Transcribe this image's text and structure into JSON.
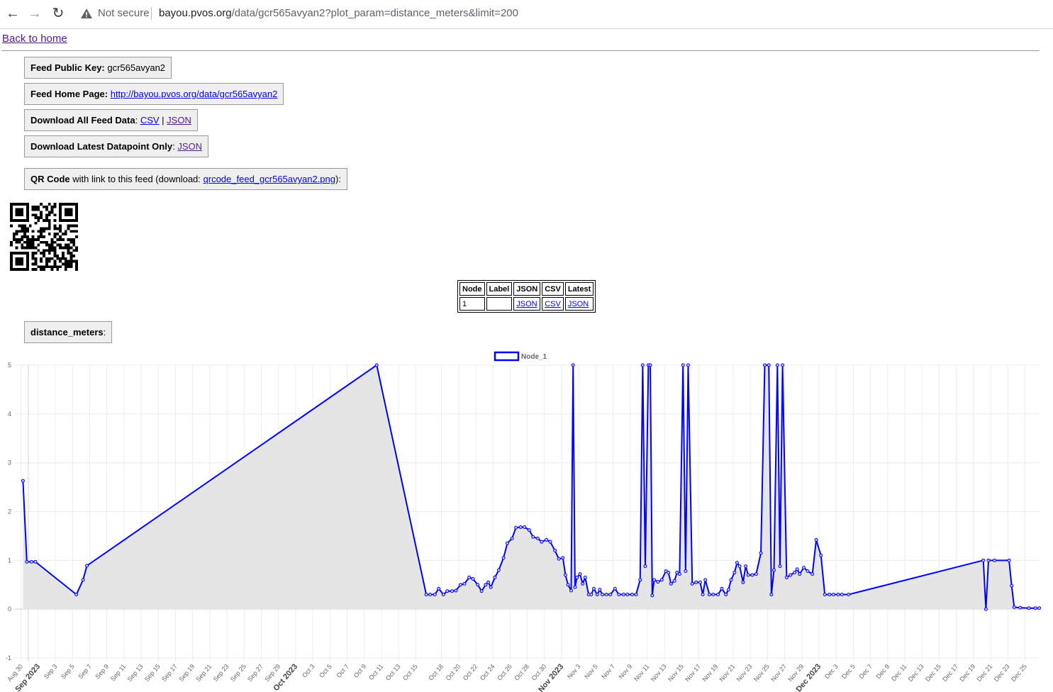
{
  "browser": {
    "security_label": "Not secure",
    "url_host": "bayou.pvos.org",
    "url_path": "/data/gcr565avyan2?plot_param=distance_meters&limit=200"
  },
  "page": {
    "back_link": "Back to home",
    "feed_key_label": "Feed Public Key:",
    "feed_key_value": " gcr565avyan2",
    "home_label": "Feed Home Page:",
    "home_url": "http://bayou.pvos.org/data/gcr565avyan2",
    "download_all_label": "Download All Feed Data",
    "download_all_csv": "CSV",
    "download_all_json": "JSON",
    "download_latest_label": "Download Latest Datapoint Only",
    "download_latest_json": "JSON",
    "qr_label": "QR Code",
    "qr_text_pre": " with link to this feed (download: ",
    "qr_file": "qrcode_feed_gcr565avyan2.png",
    "qr_text_post": "):",
    "param_label": "distance_meters"
  },
  "node_table": {
    "headers": [
      "Node",
      "Label",
      "JSON",
      "CSV",
      "Latest"
    ],
    "rows": [
      {
        "node": "1",
        "label": "",
        "json": "JSON",
        "csv": "CSV",
        "latest": "JSON"
      }
    ]
  },
  "chart_data": {
    "type": "line",
    "fill": true,
    "series": [
      {
        "name": "Node_1",
        "color": "#0000ff",
        "fill_color": "#e5e5e5",
        "points": [
          [
            "Aug 30",
            2.63
          ],
          [
            "Aug 30",
            0.97
          ],
          [
            "Aug 31",
            0.97
          ],
          [
            "Aug 31",
            0.97
          ],
          [
            "Sep 5",
            0.3
          ],
          [
            "Sep 6",
            0.6
          ],
          [
            "Sep 6",
            0.89
          ],
          [
            "Oct 10",
            5.0
          ],
          [
            "Oct 16",
            0.3
          ],
          [
            "Oct 16",
            0.3
          ],
          [
            "Oct 17",
            0.3
          ],
          [
            "Oct 17",
            0.42
          ],
          [
            "Oct 18",
            0.3
          ],
          [
            "Oct 18",
            0.37
          ],
          [
            "Oct 19",
            0.37
          ],
          [
            "Oct 19",
            0.38
          ],
          [
            "Oct 20",
            0.5
          ],
          [
            "Oct 20",
            0.52
          ],
          [
            "Oct 21",
            0.65
          ],
          [
            "Oct 21",
            0.62
          ],
          [
            "Oct 22",
            0.5
          ],
          [
            "Oct 22",
            0.37
          ],
          [
            "Oct 23",
            0.5
          ],
          [
            "Oct 23",
            0.55
          ],
          [
            "Oct 23",
            0.45
          ],
          [
            "Oct 24",
            0.65
          ],
          [
            "Oct 24",
            0.8
          ],
          [
            "Oct 25",
            1.05
          ],
          [
            "Oct 25",
            1.35
          ],
          [
            "Oct 26",
            1.45
          ],
          [
            "Oct 26",
            1.67
          ],
          [
            "Oct 27",
            1.68
          ],
          [
            "Oct 27",
            1.68
          ],
          [
            "Oct 28",
            1.62
          ],
          [
            "Oct 28",
            1.48
          ],
          [
            "Oct 29",
            1.45
          ],
          [
            "Oct 29",
            1.38
          ],
          [
            "Oct 30",
            1.42
          ],
          [
            "Oct 30",
            1.38
          ],
          [
            "Oct 31",
            1.2
          ],
          [
            "Oct 31",
            1.03
          ],
          [
            "Nov 1",
            1.05
          ],
          [
            "Nov 1",
            0.7
          ],
          [
            "Nov 1",
            0.5
          ],
          [
            "Nov 2",
            0.38
          ],
          [
            "Nov 2",
            5.0
          ],
          [
            "Nov 2",
            0.45
          ],
          [
            "Nov 2",
            0.65
          ],
          [
            "Nov 3",
            0.72
          ],
          [
            "Nov 3",
            0.52
          ],
          [
            "Nov 3",
            0.65
          ],
          [
            "Nov 4",
            0.3
          ],
          [
            "Nov 4",
            0.3
          ],
          [
            "Nov 4",
            0.42
          ],
          [
            "Nov 5",
            0.3
          ],
          [
            "Nov 5",
            0.4
          ],
          [
            "Nov 5",
            0.3
          ],
          [
            "Nov 6",
            0.3
          ],
          [
            "Nov 6",
            0.3
          ],
          [
            "Nov 7",
            0.42
          ],
          [
            "Nov 7",
            0.3
          ],
          [
            "Nov 8",
            0.3
          ],
          [
            "Nov 8",
            0.3
          ],
          [
            "Nov 9",
            0.3
          ],
          [
            "Nov 9",
            0.3
          ],
          [
            "Nov 10",
            0.6
          ],
          [
            "Nov 10",
            5.0
          ],
          [
            "Nov 10",
            0.88
          ],
          [
            "Nov 11",
            5.0
          ],
          [
            "Nov 11",
            5.0
          ],
          [
            "Nov 11",
            0.28
          ],
          [
            "Nov 11",
            0.6
          ],
          [
            "Nov 12",
            0.56
          ],
          [
            "Nov 12",
            0.6
          ],
          [
            "Nov 13",
            0.78
          ],
          [
            "Nov 13",
            0.75
          ],
          [
            "Nov 13",
            0.52
          ],
          [
            "Nov 14",
            0.58
          ],
          [
            "Nov 14",
            0.75
          ],
          [
            "Nov 14",
            0.72
          ],
          [
            "Nov 15",
            5.0
          ],
          [
            "Nov 15",
            0.78
          ],
          [
            "Nov 15",
            5.0
          ],
          [
            "Nov 16",
            0.52
          ],
          [
            "Nov 16",
            0.55
          ],
          [
            "Nov 17",
            0.55
          ],
          [
            "Nov 17",
            0.3
          ],
          [
            "Nov 17",
            0.6
          ],
          [
            "Nov 18",
            0.3
          ],
          [
            "Nov 18",
            0.3
          ],
          [
            "Nov 19",
            0.3
          ],
          [
            "Nov 19",
            0.42
          ],
          [
            "Nov 20",
            0.3
          ],
          [
            "Nov 20",
            0.4
          ],
          [
            "Nov 20",
            0.6
          ],
          [
            "Nov 21",
            0.75
          ],
          [
            "Nov 21",
            0.95
          ],
          [
            "Nov 21",
            0.88
          ],
          [
            "Nov 22",
            0.55
          ],
          [
            "Nov 22",
            0.88
          ],
          [
            "Nov 22",
            0.7
          ],
          [
            "Nov 23",
            0.7
          ],
          [
            "Nov 23",
            0.72
          ],
          [
            "Nov 24",
            1.15
          ],
          [
            "Nov 24",
            5.0
          ],
          [
            "Nov 25",
            5.0
          ],
          [
            "Nov 25",
            0.3
          ],
          [
            "Nov 25",
            0.8
          ],
          [
            "Nov 26",
            5.0
          ],
          [
            "Nov 26",
            0.88
          ],
          [
            "Nov 26",
            5.0
          ],
          [
            "Nov 27",
            0.65
          ],
          [
            "Nov 27",
            0.7
          ],
          [
            "Nov 28",
            0.75
          ],
          [
            "Nov 28",
            0.82
          ],
          [
            "Nov 28",
            0.72
          ],
          [
            "Nov 29",
            0.85
          ],
          [
            "Nov 29",
            0.78
          ],
          [
            "Nov 30",
            0.72
          ],
          [
            "Nov 30",
            1.42
          ],
          [
            "Dec 1",
            1.1
          ],
          [
            "Dec 1",
            0.3
          ],
          [
            "Dec 2",
            0.3
          ],
          [
            "Dec 2",
            0.3
          ],
          [
            "Dec 3",
            0.3
          ],
          [
            "Dec 3",
            0.3
          ],
          [
            "Dec 4",
            0.3
          ],
          [
            "Dec 20",
            1.0
          ],
          [
            "Dec 20",
            0.0
          ],
          [
            "Dec 20",
            1.0
          ],
          [
            "Dec 21",
            1.0
          ],
          [
            "Dec 23",
            1.0
          ],
          [
            "Dec 23",
            0.48
          ],
          [
            "Dec 23",
            0.04
          ],
          [
            "Dec 24",
            0.03
          ],
          [
            "Dec 25",
            0.02
          ],
          [
            "Dec 26",
            0.02
          ],
          [
            "Dec 26",
            0.02
          ]
        ]
      }
    ],
    "y_axis": {
      "min": -1,
      "max": 5,
      "ticks": [
        "-1",
        "0",
        "1",
        "2",
        "3",
        "4",
        "5"
      ]
    },
    "x_axis": {
      "tick_labels": [
        "Aug 30",
        "Sep 2023",
        "Sep 3",
        "Sep 5",
        "Sep 7",
        "Sep 9",
        "Sep 11",
        "Sep 13",
        "Sep 15",
        "Sep 17",
        "Sep 19",
        "Sep 21",
        "Sep 23",
        "Sep 25",
        "Sep 27",
        "Sep 29",
        "Oct 2023",
        "Oct 3",
        "Oct 5",
        "Oct 7",
        "Oct 9",
        "Oct 11",
        "Oct 13",
        "Oct 15",
        "Oct 18",
        "Oct 20",
        "Oct 22",
        "Oct 24",
        "Oct 26",
        "Oct 28",
        "Oct 30",
        "Nov 2023",
        "Nov 3",
        "Nov 5",
        "Nov 7",
        "Nov 9",
        "Nov 11",
        "Nov 13",
        "Nov 15",
        "Nov 17",
        "Nov 19",
        "Nov 21",
        "Nov 23",
        "Nov 25",
        "Nov 27",
        "Nov 29",
        "Dec 2023",
        "Dec 3",
        "Dec 5",
        "Dec 7",
        "Dec 9",
        "Dec 11",
        "Dec 13",
        "Dec 15",
        "Dec 17",
        "Dec 19",
        "Dec 21",
        "Dec 23",
        "Dec 25"
      ],
      "bold_labels": [
        "Sep 2023",
        "Oct 2023",
        "Nov 2023",
        "Dec 2023"
      ]
    },
    "legend": {
      "position": "top-center",
      "entries": [
        "Node_1"
      ]
    },
    "grid": true
  }
}
